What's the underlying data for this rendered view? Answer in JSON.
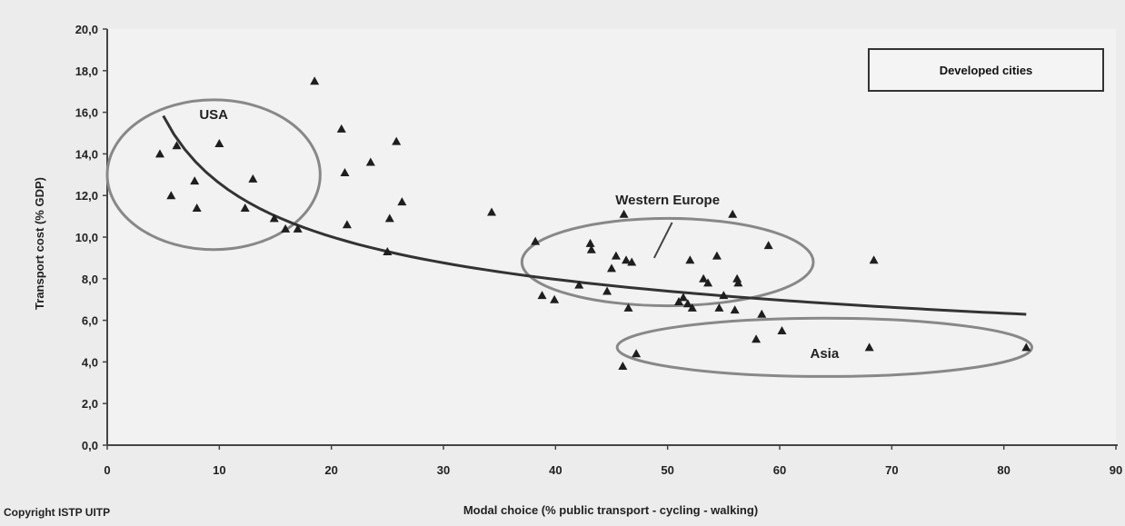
{
  "chart_data": {
    "type": "scatter",
    "title": "",
    "xlabel": "Modal choice (% public transport - cycling - walking)",
    "ylabel": "Transport cost (% GDP)",
    "xlim": [
      0,
      90
    ],
    "ylim": [
      0,
      20
    ],
    "x_ticks": [
      "0",
      "10",
      "20",
      "30",
      "40",
      "50",
      "60",
      "70",
      "80",
      "90"
    ],
    "y_ticks": [
      "0,0",
      "2,0",
      "4,0",
      "6,0",
      "8,0",
      "10,0",
      "12,0",
      "14,0",
      "16,0",
      "18,0",
      "20,0"
    ],
    "grid": false,
    "legend_label": "Developed cities",
    "legend_position": "top-right",
    "copyright": "Copyright ISTP UITP",
    "regions": [
      {
        "label": "USA",
        "cx": 9.5,
        "cy": 13.0,
        "rx": 9.5,
        "ry": 3.6
      },
      {
        "label": "Western Europe",
        "cx": 50.0,
        "cy": 8.8,
        "rx": 13.0,
        "ry": 2.1
      },
      {
        "label": "Asia",
        "cx": 64.0,
        "cy": 4.7,
        "rx": 18.5,
        "ry": 1.4
      }
    ],
    "trend": {
      "type": "power",
      "a": 26.92,
      "b": -0.33,
      "x_start": 5,
      "x_end": 82
    },
    "series": [
      {
        "x": [
          4.7,
          5.7,
          6.2,
          7.8,
          8.0,
          10.0,
          12.3,
          13.0,
          14.9,
          15.9,
          17.0,
          18.5,
          20.9,
          21.2,
          21.4,
          23.5,
          25.0,
          25.2,
          25.8,
          26.3,
          34.3,
          38.2,
          38.8,
          39.9,
          42.1,
          43.1,
          43.2,
          44.6,
          45.0,
          45.4,
          46.0,
          46.1,
          46.3,
          46.5,
          46.8,
          47.2,
          51.0,
          51.4,
          51.8,
          52.0,
          52.2,
          53.2,
          53.6,
          54.4,
          54.6,
          55.0,
          55.8,
          56.0,
          56.2,
          56.3,
          57.9,
          58.4,
          59.0,
          60.2,
          68.0,
          68.4,
          82.0
        ],
        "y": [
          14.0,
          12.0,
          14.4,
          12.7,
          11.4,
          14.5,
          11.4,
          12.8,
          10.9,
          10.4,
          10.4,
          17.5,
          15.2,
          13.1,
          10.6,
          13.6,
          9.3,
          10.9,
          14.6,
          11.7,
          11.2,
          9.8,
          7.2,
          7.0,
          7.7,
          9.7,
          9.4,
          7.4,
          8.5,
          9.1,
          3.8,
          11.1,
          8.9,
          6.6,
          8.8,
          4.4,
          6.9,
          7.1,
          6.8,
          8.9,
          6.6,
          8.0,
          7.8,
          9.1,
          6.6,
          7.2,
          11.1,
          6.5,
          8.0,
          7.8,
          5.1,
          6.3,
          9.6,
          5.5,
          4.7,
          8.9,
          4.7
        ]
      }
    ]
  }
}
